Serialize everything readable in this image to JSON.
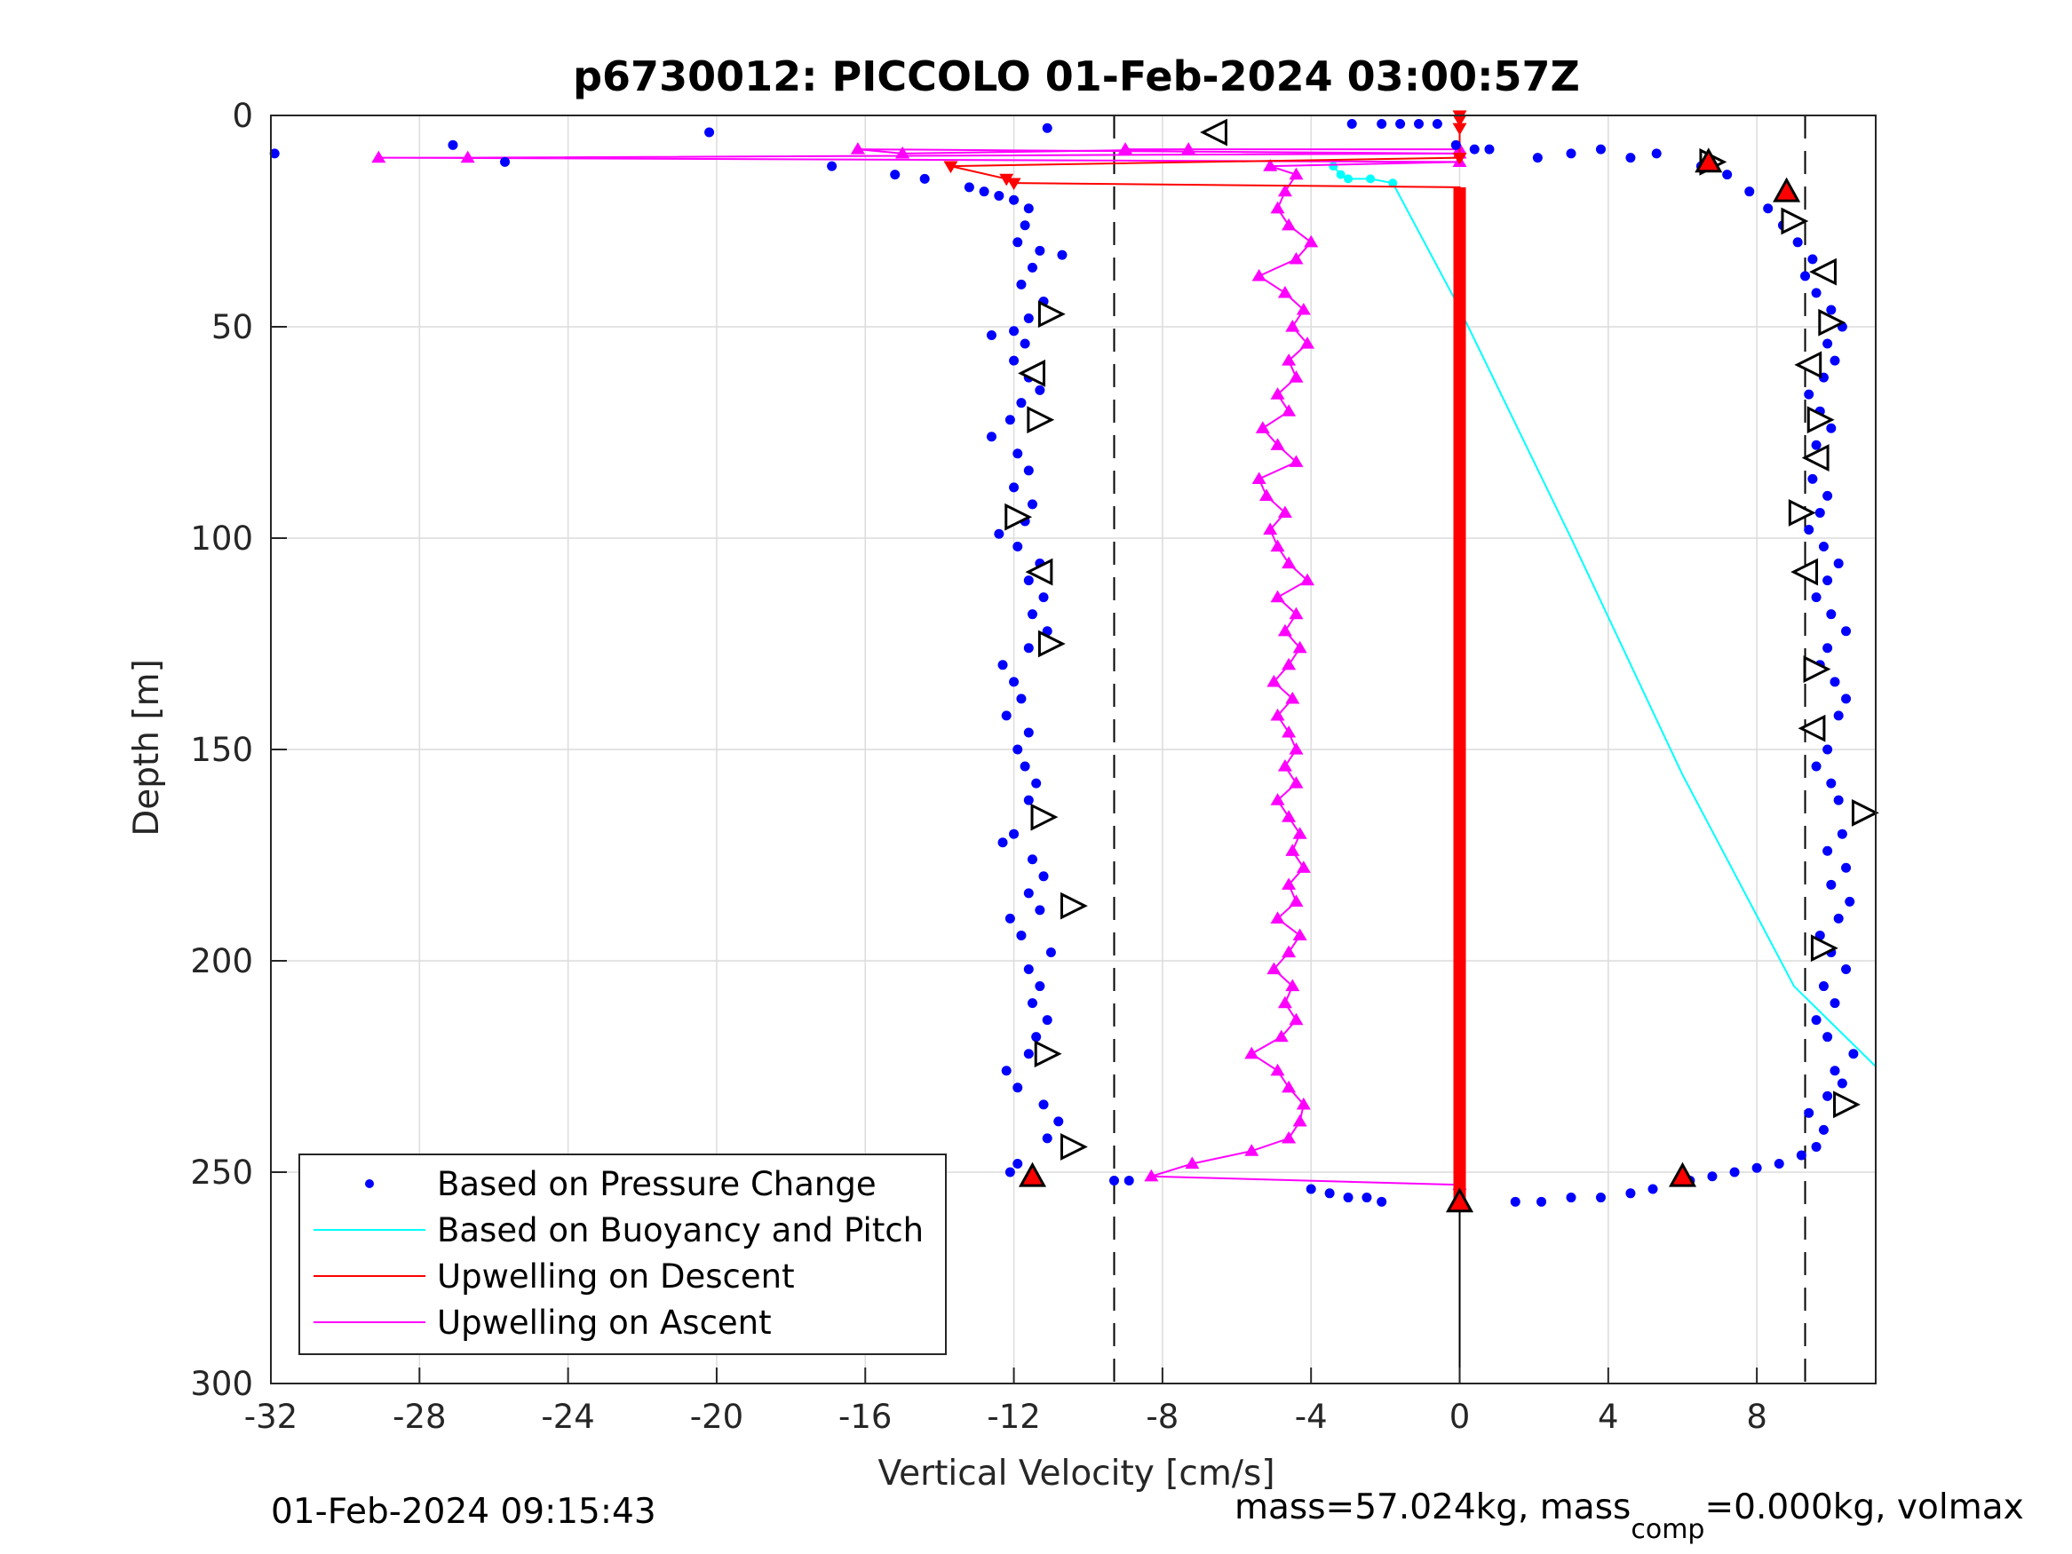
{
  "chart_data": {
    "type": "scatter",
    "title": "p6730012: PICCOLO 01-Feb-2024 03:00:57Z",
    "xlabel": "Vertical Velocity [cm/s]",
    "ylabel": "Depth [m]",
    "xlim": [
      -32,
      11.2
    ],
    "ylim": [
      0,
      300
    ],
    "y_reversed": true,
    "grid": true,
    "xticks": [
      -32,
      -28,
      -24,
      -20,
      -16,
      -12,
      -8,
      -4,
      0,
      4,
      8
    ],
    "yticks": [
      0,
      50,
      100,
      150,
      200,
      250,
      300
    ],
    "reference_lines_x": [
      -9.3,
      9.3
    ],
    "legend_position": "bottom-left",
    "legend": [
      {
        "label": "Based on Pressure Change",
        "color": "#0000ff",
        "style": "dot"
      },
      {
        "label": "Based on Buoyancy and Pitch",
        "color": "#00ffff",
        "style": "line"
      },
      {
        "label": "Upwelling on Descent",
        "color": "#ff0000",
        "style": "line"
      },
      {
        "label": "Upwelling on Ascent",
        "color": "#ff00ff",
        "style": "line"
      }
    ],
    "series": [
      {
        "name": "Based on Pressure Change",
        "kind": "points",
        "color": "#0000ff",
        "points": [
          [
            -31.9,
            9
          ],
          [
            -20.2,
            4
          ],
          [
            -27.1,
            7
          ],
          [
            -25.7,
            11
          ],
          [
            -16.9,
            12
          ],
          [
            -15.2,
            14
          ],
          [
            -14.4,
            15
          ],
          [
            -11.1,
            3
          ],
          [
            -2.9,
            2
          ],
          [
            -2.1,
            2
          ],
          [
            -1.6,
            2
          ],
          [
            -1.1,
            2
          ],
          [
            -0.6,
            2
          ],
          [
            -0.1,
            7
          ],
          [
            0.4,
            8
          ],
          [
            0.8,
            8
          ],
          [
            -13.2,
            17
          ],
          [
            -12.8,
            18
          ],
          [
            -12.4,
            19
          ],
          [
            -12.0,
            20
          ],
          [
            -11.6,
            22
          ],
          [
            -11.7,
            26
          ],
          [
            -11.9,
            30
          ],
          [
            -11.3,
            32
          ],
          [
            -10.7,
            33
          ],
          [
            -11.5,
            36
          ],
          [
            -11.8,
            40
          ],
          [
            -11.2,
            44
          ],
          [
            -11.6,
            48
          ],
          [
            -12.0,
            51
          ],
          [
            -12.6,
            52
          ],
          [
            -11.7,
            54
          ],
          [
            -12.0,
            58
          ],
          [
            -11.6,
            62
          ],
          [
            -11.3,
            65
          ],
          [
            -11.8,
            68
          ],
          [
            -12.1,
            72
          ],
          [
            -12.6,
            76
          ],
          [
            -11.9,
            80
          ],
          [
            -11.6,
            84
          ],
          [
            -12.0,
            88
          ],
          [
            -11.5,
            92
          ],
          [
            -11.7,
            96
          ],
          [
            -12.4,
            99
          ],
          [
            -11.9,
            102
          ],
          [
            -11.3,
            106
          ],
          [
            -11.6,
            110
          ],
          [
            -11.2,
            114
          ],
          [
            -11.5,
            118
          ],
          [
            -11.1,
            122
          ],
          [
            -11.6,
            126
          ],
          [
            -12.3,
            130
          ],
          [
            -12.0,
            134
          ],
          [
            -11.8,
            138
          ],
          [
            -12.2,
            142
          ],
          [
            -11.6,
            146
          ],
          [
            -11.9,
            150
          ],
          [
            -11.7,
            154
          ],
          [
            -11.4,
            158
          ],
          [
            -11.6,
            162
          ],
          [
            -11.4,
            166
          ],
          [
            -12.0,
            170
          ],
          [
            -12.3,
            172
          ],
          [
            -11.5,
            176
          ],
          [
            -11.2,
            180
          ],
          [
            -11.6,
            184
          ],
          [
            -11.3,
            188
          ],
          [
            -12.1,
            190
          ],
          [
            -11.8,
            194
          ],
          [
            -11.0,
            198
          ],
          [
            -11.6,
            202
          ],
          [
            -11.3,
            206
          ],
          [
            -11.5,
            210
          ],
          [
            -11.1,
            214
          ],
          [
            -11.4,
            218
          ],
          [
            -11.6,
            222
          ],
          [
            -12.2,
            226
          ],
          [
            -11.9,
            230
          ],
          [
            -11.2,
            234
          ],
          [
            -10.8,
            238
          ],
          [
            -11.1,
            242
          ],
          [
            -10.6,
            245
          ],
          [
            -11.9,
            248
          ],
          [
            -12.1,
            250
          ],
          [
            -9.3,
            252
          ],
          [
            -8.9,
            252
          ],
          [
            -4.0,
            254
          ],
          [
            -3.5,
            255
          ],
          [
            -3.0,
            256
          ],
          [
            -2.5,
            256
          ],
          [
            -2.1,
            257
          ],
          [
            1.5,
            257
          ],
          [
            2.2,
            257
          ],
          [
            3.0,
            256
          ],
          [
            3.8,
            256
          ],
          [
            4.6,
            255
          ],
          [
            5.2,
            254
          ],
          [
            6.2,
            252
          ],
          [
            6.8,
            251
          ],
          [
            7.4,
            250
          ],
          [
            8.0,
            249
          ],
          [
            8.6,
            248
          ],
          [
            9.2,
            246
          ],
          [
            9.6,
            244
          ],
          [
            9.8,
            240
          ],
          [
            9.4,
            236
          ],
          [
            9.9,
            232
          ],
          [
            10.3,
            229
          ],
          [
            10.1,
            226
          ],
          [
            10.6,
            222
          ],
          [
            9.9,
            218
          ],
          [
            9.6,
            214
          ],
          [
            10.1,
            210
          ],
          [
            9.8,
            206
          ],
          [
            10.4,
            202
          ],
          [
            10.0,
            198
          ],
          [
            9.7,
            194
          ],
          [
            10.2,
            190
          ],
          [
            10.5,
            186
          ],
          [
            10.0,
            182
          ],
          [
            10.4,
            178
          ],
          [
            9.9,
            174
          ],
          [
            10.3,
            170
          ],
          [
            10.7,
            166
          ],
          [
            10.2,
            162
          ],
          [
            10.0,
            158
          ],
          [
            9.6,
            154
          ],
          [
            9.9,
            150
          ],
          [
            9.7,
            146
          ],
          [
            10.2,
            142
          ],
          [
            10.4,
            138
          ],
          [
            10.1,
            134
          ],
          [
            9.7,
            130
          ],
          [
            9.9,
            126
          ],
          [
            10.4,
            122
          ],
          [
            10.0,
            118
          ],
          [
            9.6,
            114
          ],
          [
            9.9,
            110
          ],
          [
            10.2,
            106
          ],
          [
            9.8,
            102
          ],
          [
            9.4,
            98
          ],
          [
            9.7,
            94
          ],
          [
            9.9,
            90
          ],
          [
            9.5,
            86
          ],
          [
            9.8,
            82
          ],
          [
            9.6,
            78
          ],
          [
            10.0,
            74
          ],
          [
            9.7,
            70
          ],
          [
            9.4,
            66
          ],
          [
            9.8,
            62
          ],
          [
            10.1,
            58
          ],
          [
            9.9,
            54
          ],
          [
            10.3,
            50
          ],
          [
            10.0,
            46
          ],
          [
            9.6,
            42
          ],
          [
            9.3,
            38
          ],
          [
            9.5,
            34
          ],
          [
            9.1,
            30
          ],
          [
            8.7,
            26
          ],
          [
            8.3,
            22
          ],
          [
            7.8,
            18
          ],
          [
            7.2,
            14
          ],
          [
            6.5,
            12
          ],
          [
            5.3,
            9
          ],
          [
            4.6,
            10
          ],
          [
            3.8,
            8
          ],
          [
            3.0,
            9
          ],
          [
            2.1,
            10
          ]
        ]
      },
      {
        "name": "Based on Buoyancy and Pitch",
        "kind": "line",
        "color": "#00ffff",
        "points": [
          [
            -3.4,
            12
          ],
          [
            -3.2,
            14
          ],
          [
            -3.0,
            15
          ],
          [
            -2.4,
            15
          ],
          [
            -1.8,
            16
          ],
          [
            -0.1,
            44
          ],
          [
            3.0,
            100
          ],
          [
            6.0,
            156
          ],
          [
            9.0,
            206
          ],
          [
            11.2,
            225
          ]
        ]
      },
      {
        "name": "Upwelling on Descent",
        "kind": "line",
        "color": "#ff0000",
        "points": [
          [
            0,
            0
          ],
          [
            0,
            1
          ],
          [
            0,
            3
          ],
          [
            0,
            10
          ],
          [
            -13.7,
            12
          ],
          [
            -12.2,
            15
          ],
          [
            -12.0,
            16
          ],
          [
            0,
            17
          ],
          [
            0,
            40
          ],
          [
            0,
            80
          ],
          [
            0,
            120
          ],
          [
            0,
            160
          ],
          [
            0,
            200
          ],
          [
            0,
            240
          ],
          [
            0,
            255
          ],
          [
            0,
            257
          ]
        ]
      },
      {
        "name": "Upwelling on Ascent",
        "kind": "line",
        "color": "#ff00ff",
        "points": [
          [
            0,
            253
          ],
          [
            -8.3,
            251
          ],
          [
            -7.2,
            248
          ],
          [
            -5.6,
            245
          ],
          [
            -4.6,
            242
          ],
          [
            -4.3,
            238
          ],
          [
            -4.2,
            234
          ],
          [
            -4.6,
            230
          ],
          [
            -4.9,
            226
          ],
          [
            -5.6,
            222
          ],
          [
            -4.8,
            218
          ],
          [
            -4.4,
            214
          ],
          [
            -4.7,
            210
          ],
          [
            -4.5,
            206
          ],
          [
            -5.0,
            202
          ],
          [
            -4.6,
            198
          ],
          [
            -4.3,
            194
          ],
          [
            -4.9,
            190
          ],
          [
            -4.4,
            186
          ],
          [
            -4.6,
            182
          ],
          [
            -4.2,
            178
          ],
          [
            -4.5,
            174
          ],
          [
            -4.3,
            170
          ],
          [
            -4.6,
            166
          ],
          [
            -4.9,
            162
          ],
          [
            -4.4,
            158
          ],
          [
            -4.7,
            154
          ],
          [
            -4.4,
            150
          ],
          [
            -4.6,
            146
          ],
          [
            -4.9,
            142
          ],
          [
            -4.5,
            138
          ],
          [
            -5.0,
            134
          ],
          [
            -4.6,
            130
          ],
          [
            -4.3,
            126
          ],
          [
            -4.7,
            122
          ],
          [
            -4.4,
            118
          ],
          [
            -4.9,
            114
          ],
          [
            -4.1,
            110
          ],
          [
            -4.6,
            106
          ],
          [
            -4.9,
            102
          ],
          [
            -5.1,
            98
          ],
          [
            -4.7,
            94
          ],
          [
            -5.2,
            90
          ],
          [
            -5.4,
            86
          ],
          [
            -4.4,
            82
          ],
          [
            -4.9,
            78
          ],
          [
            -5.3,
            74
          ],
          [
            -4.6,
            70
          ],
          [
            -4.9,
            66
          ],
          [
            -4.4,
            62
          ],
          [
            -4.6,
            58
          ],
          [
            -4.1,
            54
          ],
          [
            -4.5,
            50
          ],
          [
            -4.2,
            46
          ],
          [
            -4.7,
            42
          ],
          [
            -5.4,
            38
          ],
          [
            -4.4,
            34
          ],
          [
            -4.0,
            30
          ],
          [
            -4.6,
            26
          ],
          [
            -4.9,
            22
          ],
          [
            -4.7,
            18
          ],
          [
            -4.4,
            14
          ],
          [
            -5.1,
            12
          ],
          [
            0,
            11
          ],
          [
            -29.1,
            10
          ],
          [
            -26.7,
            10
          ],
          [
            0,
            9
          ],
          [
            -16.2,
            8
          ],
          [
            -15.0,
            9
          ],
          [
            -7.3,
            8
          ],
          [
            0,
            8
          ],
          [
            -9.0,
            8
          ]
        ]
      }
    ],
    "markers": [
      {
        "x": -6.6,
        "y": 4,
        "shape": "left"
      },
      {
        "x": -11.0,
        "y": 47,
        "shape": "right"
      },
      {
        "x": -11.5,
        "y": 61,
        "shape": "left"
      },
      {
        "x": -11.3,
        "y": 72,
        "shape": "right"
      },
      {
        "x": -11.9,
        "y": 95,
        "shape": "right"
      },
      {
        "x": -11.3,
        "y": 108,
        "shape": "left"
      },
      {
        "x": -11.0,
        "y": 125,
        "shape": "right"
      },
      {
        "x": -11.2,
        "y": 166,
        "shape": "right"
      },
      {
        "x": -10.4,
        "y": 187,
        "shape": "right"
      },
      {
        "x": -11.1,
        "y": 222,
        "shape": "right"
      },
      {
        "x": -10.4,
        "y": 244,
        "shape": "right"
      },
      {
        "x": 9.8,
        "y": 37,
        "shape": "left"
      },
      {
        "x": 10.0,
        "y": 49,
        "shape": "right"
      },
      {
        "x": 9.4,
        "y": 59,
        "shape": "left"
      },
      {
        "x": 9.7,
        "y": 72,
        "shape": "right"
      },
      {
        "x": 9.6,
        "y": 81,
        "shape": "left"
      },
      {
        "x": 9.2,
        "y": 94,
        "shape": "right"
      },
      {
        "x": 9.3,
        "y": 108,
        "shape": "left"
      },
      {
        "x": 9.6,
        "y": 131,
        "shape": "right"
      },
      {
        "x": 9.5,
        "y": 145,
        "shape": "left"
      },
      {
        "x": 10.9,
        "y": 165,
        "shape": "right"
      },
      {
        "x": 9.8,
        "y": 197,
        "shape": "right"
      },
      {
        "x": 10.4,
        "y": 234,
        "shape": "right"
      },
      {
        "x": 6.8,
        "y": 11,
        "shape": "right"
      },
      {
        "x": 9.0,
        "y": 25,
        "shape": "right"
      },
      {
        "x": -11.5,
        "y": 251,
        "shape": "up-red"
      },
      {
        "x": 6.0,
        "y": 251,
        "shape": "up-red"
      },
      {
        "x": 8.8,
        "y": 18,
        "shape": "up-red"
      },
      {
        "x": 6.7,
        "y": 11,
        "shape": "up-red"
      },
      {
        "x": 0,
        "y": 257,
        "shape": "up-red"
      }
    ]
  },
  "footer": {
    "timestamp": "01-Feb-2024 09:15:43",
    "mass_prefix": "mass=57.024kg, mass",
    "mass_subscript": "comp",
    "mass_suffix": "=0.000kg, volmax"
  },
  "colors": {
    "pressure": "#0000ff",
    "buoyancy": "#00ffff",
    "descent": "#ff0000",
    "ascent": "#ff00ff",
    "grid": "#dcdcdc"
  }
}
